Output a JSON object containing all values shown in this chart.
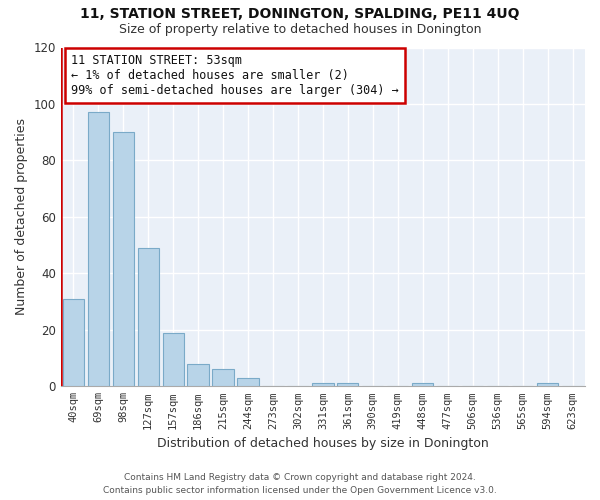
{
  "title": "11, STATION STREET, DONINGTON, SPALDING, PE11 4UQ",
  "subtitle": "Size of property relative to detached houses in Donington",
  "xlabel": "Distribution of detached houses by size in Donington",
  "ylabel": "Number of detached properties",
  "bar_labels": [
    "40sqm",
    "69sqm",
    "98sqm",
    "127sqm",
    "157sqm",
    "186sqm",
    "215sqm",
    "244sqm",
    "273sqm",
    "302sqm",
    "331sqm",
    "361sqm",
    "390sqm",
    "419sqm",
    "448sqm",
    "477sqm",
    "506sqm",
    "536sqm",
    "565sqm",
    "594sqm",
    "623sqm"
  ],
  "bar_values": [
    31,
    97,
    90,
    49,
    19,
    8,
    6,
    3,
    0,
    0,
    1,
    1,
    0,
    0,
    1,
    0,
    0,
    0,
    0,
    1,
    0
  ],
  "bar_color": "#b8d4e8",
  "bar_edge_color": "#7aaac8",
  "highlight_color": "#cc0000",
  "plot_bg_color": "#eaf0f8",
  "ylim": [
    0,
    120
  ],
  "yticks": [
    0,
    20,
    40,
    60,
    80,
    100,
    120
  ],
  "annotation_title": "11 STATION STREET: 53sqm",
  "annotation_line1": "← 1% of detached houses are smaller (2)",
  "annotation_line2": "99% of semi-detached houses are larger (304) →",
  "annotation_box_color": "#ffffff",
  "annotation_border_color": "#cc0000",
  "footnote1": "Contains HM Land Registry data © Crown copyright and database right 2024.",
  "footnote2": "Contains public sector information licensed under the Open Government Licence v3.0.",
  "figsize": [
    6.0,
    5.0
  ],
  "dpi": 100
}
